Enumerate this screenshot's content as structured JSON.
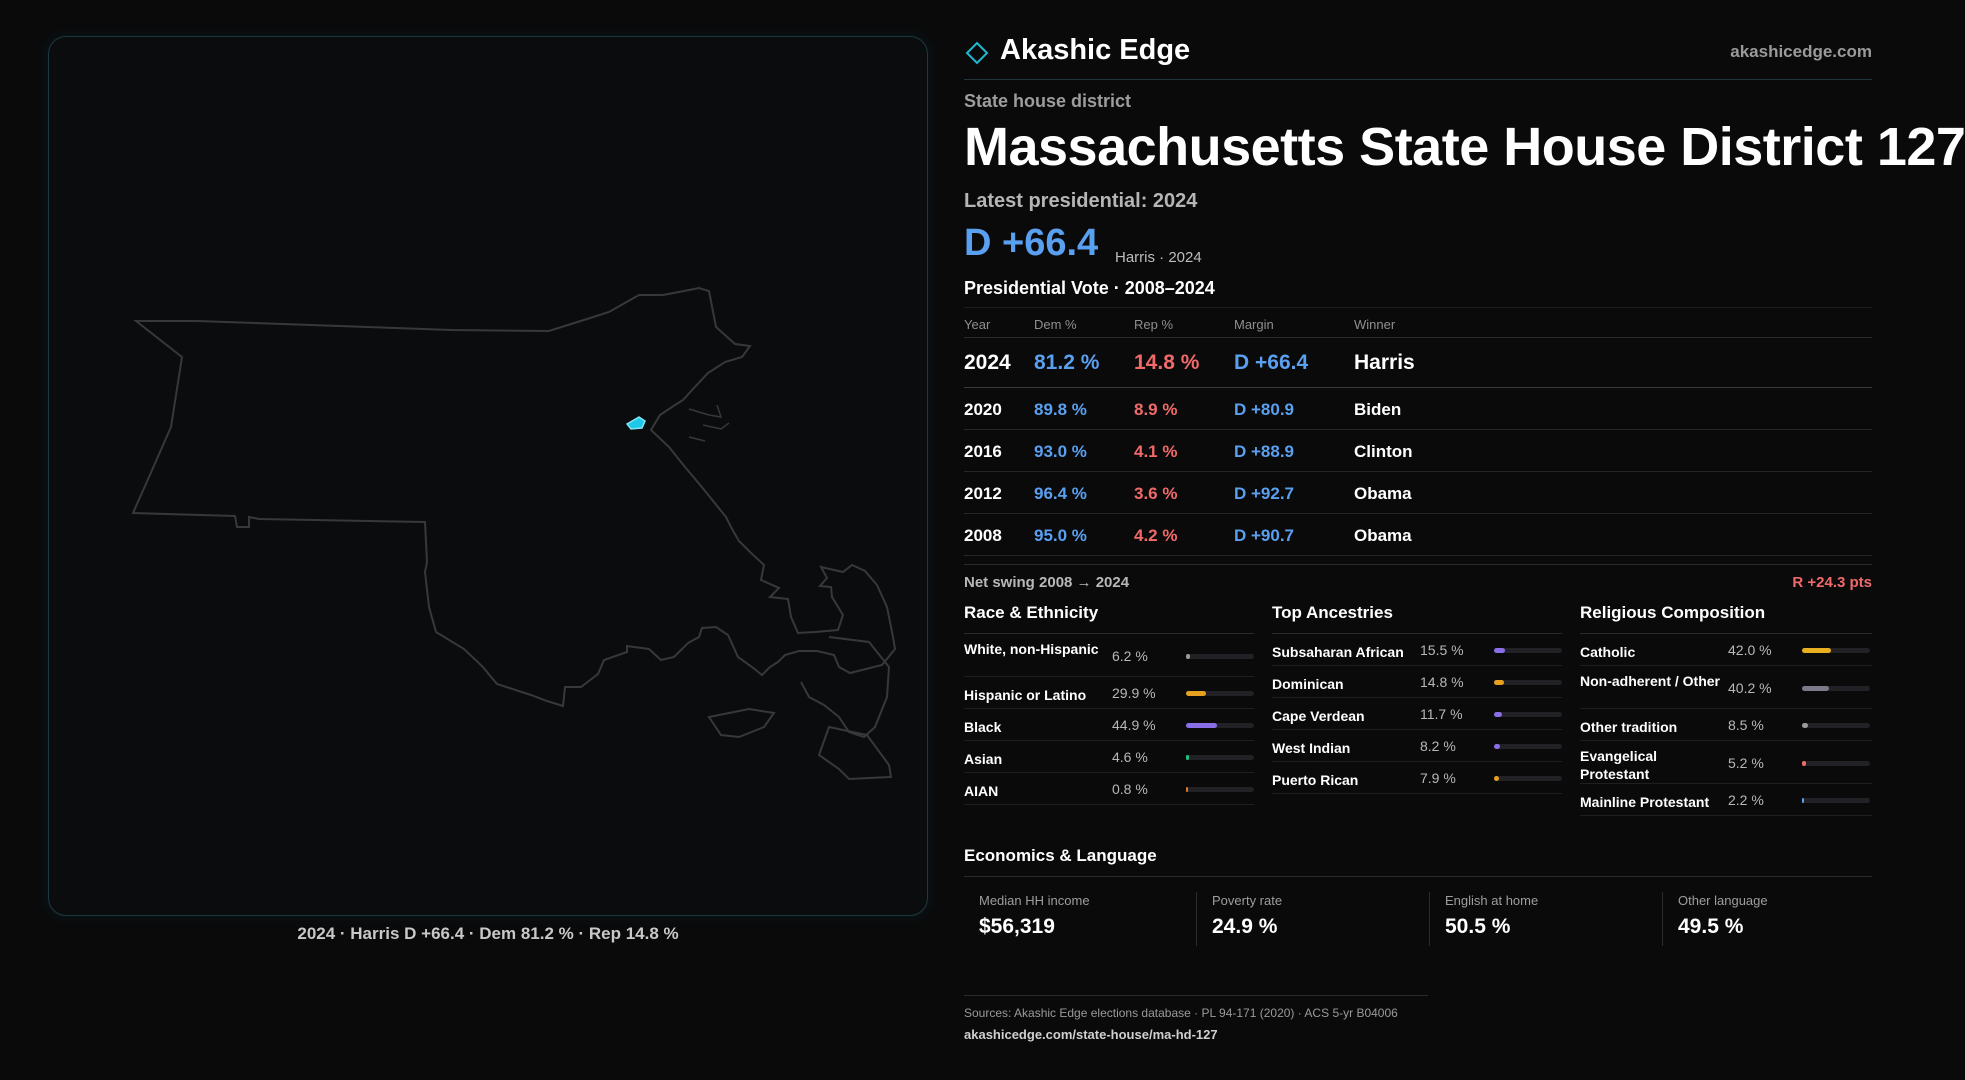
{
  "brand": {
    "name": "Akashic Edge",
    "url": "akashicedge.com"
  },
  "district": {
    "type": "State house district",
    "title": "Massachusetts State House District 127",
    "latest_label": "Latest presidential: 2024",
    "margin": "D +66.4",
    "margin_detail": "Harris · 2024"
  },
  "map": {
    "caption": "2024 · Harris D +66.4 · Dem 81.2 % · Rep 14.8 %",
    "district_color": "#1fc8e8",
    "outline_color": "#3a3a3e"
  },
  "presidential": {
    "title": "Presidential Vote · 2008–2024",
    "headers": {
      "year": "Year",
      "dem": "Dem %",
      "rep": "Rep %",
      "margin": "Margin",
      "winner": "Winner"
    },
    "rows": [
      {
        "year": "2024",
        "dem": "81.2 %",
        "rep": "14.8 %",
        "margin": "D +66.4",
        "winner": "Harris"
      },
      {
        "year": "2020",
        "dem": "89.8 %",
        "rep": "8.9 %",
        "margin": "D +80.9",
        "winner": "Biden"
      },
      {
        "year": "2016",
        "dem": "93.0 %",
        "rep": "4.1 %",
        "margin": "D +88.9",
        "winner": "Clinton"
      },
      {
        "year": "2012",
        "dem": "96.4 %",
        "rep": "3.6 %",
        "margin": "D +92.7",
        "winner": "Obama"
      },
      {
        "year": "2008",
        "dem": "95.0 %",
        "rep": "4.2 %",
        "margin": "D +90.7",
        "winner": "Obama"
      }
    ],
    "swing_label": "Net swing 2008 → 2024",
    "swing_value": "R +24.3 pts"
  },
  "race": {
    "title": "Race & Ethnicity",
    "items": [
      {
        "label": "White, non-Hispanic",
        "value": "6.2 %",
        "pct": 6.2,
        "color": "#9a9a9a"
      },
      {
        "label": "Hispanic or Latino",
        "value": "29.9 %",
        "pct": 29.9,
        "color": "#e8a020"
      },
      {
        "label": "Black",
        "value": "44.9 %",
        "pct": 44.9,
        "color": "#8a6ee8"
      },
      {
        "label": "Asian",
        "value": "4.6 %",
        "pct": 4.6,
        "color": "#20c080"
      },
      {
        "label": "AIAN",
        "value": "0.8 %",
        "pct": 0.8,
        "color": "#e07830"
      }
    ]
  },
  "ancestry": {
    "title": "Top Ancestries",
    "items": [
      {
        "label": "Subsaharan African",
        "value": "15.5 %",
        "pct": 15.5,
        "color": "#8a6ee8"
      },
      {
        "label": "Dominican",
        "value": "14.8 %",
        "pct": 14.8,
        "color": "#e8a020"
      },
      {
        "label": "Cape Verdean",
        "value": "11.7 %",
        "pct": 11.7,
        "color": "#8a6ee8"
      },
      {
        "label": "West Indian",
        "value": "8.2 %",
        "pct": 8.2,
        "color": "#8a6ee8"
      },
      {
        "label": "Puerto Rican",
        "value": "7.9 %",
        "pct": 7.9,
        "color": "#e8a020"
      }
    ]
  },
  "religion": {
    "title": "Religious Composition",
    "items": [
      {
        "label": "Catholic",
        "value": "42.0 %",
        "pct": 42.0,
        "color": "#e8b020"
      },
      {
        "label": "Non-adherent / Other",
        "value": "40.2 %",
        "pct": 40.2,
        "color": "#7a7a88"
      },
      {
        "label": "Other tradition",
        "value": "8.5 %",
        "pct": 8.5,
        "color": "#9a9a9a"
      },
      {
        "label": "Evangelical Protestant",
        "value": "5.2 %",
        "pct": 5.2,
        "color": "#f06a6a"
      },
      {
        "label": "Mainline Protestant",
        "value": "2.2 %",
        "pct": 2.2,
        "color": "#5aa0f0"
      }
    ]
  },
  "economics": {
    "title": "Economics & Language",
    "items": [
      {
        "label": "Median HH income",
        "value": "$56,319"
      },
      {
        "label": "Poverty rate",
        "value": "24.9 %"
      },
      {
        "label": "English at home",
        "value": "50.5 %"
      },
      {
        "label": "Other language",
        "value": "49.5 %"
      }
    ]
  },
  "sources": {
    "text": "Sources: Akashic Edge elections database · PL 94-171 (2020) · ACS 5-yr B04006",
    "url": "akashicedge.com/state-house/ma-hd-127"
  }
}
